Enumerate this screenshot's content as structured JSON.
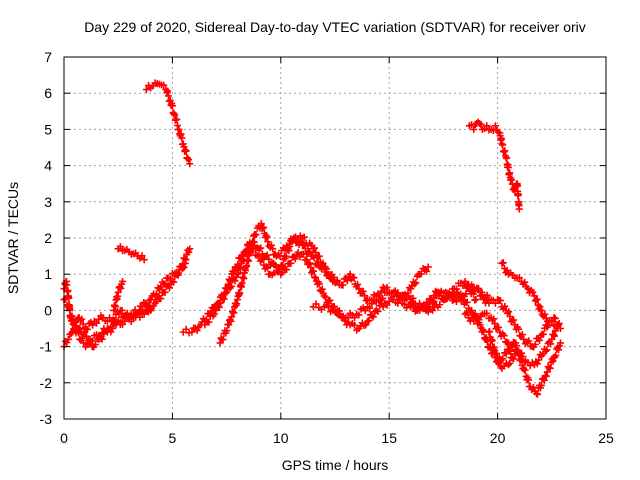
{
  "chart_data": {
    "type": "scatter",
    "title": "Day 229 of 2020, Sidereal Day-to-day VTEC variation (SDTVAR) for receiver oriv",
    "xlabel": "GPS time / hours",
    "ylabel": "SDTVAR / TECUs",
    "xlim": [
      0,
      25
    ],
    "ylim": [
      -3,
      7
    ],
    "xticks": [
      0,
      5,
      10,
      15,
      20,
      25
    ],
    "yticks": [
      -3,
      -2,
      -1,
      0,
      1,
      2,
      3,
      4,
      5,
      6,
      7
    ],
    "grid": true,
    "marker": "plus",
    "color": "#ff0000",
    "tracks": [
      {
        "name": "arc-high-1",
        "points": [
          [
            3.8,
            6.1
          ],
          [
            4.1,
            6.2
          ],
          [
            4.4,
            6.25
          ],
          [
            4.7,
            6.1
          ],
          [
            4.9,
            5.8
          ],
          [
            5.1,
            5.4
          ],
          [
            5.3,
            5.0
          ],
          [
            5.5,
            4.6
          ],
          [
            5.7,
            4.2
          ],
          [
            5.8,
            4.05
          ]
        ]
      },
      {
        "name": "arc-high-2",
        "points": [
          [
            18.7,
            5.1
          ],
          [
            18.9,
            5.0
          ],
          [
            19.1,
            5.2
          ],
          [
            19.3,
            5.0
          ],
          [
            19.5,
            5.1
          ],
          [
            19.7,
            5.0
          ],
          [
            19.9,
            5.1
          ],
          [
            20.1,
            4.9
          ],
          [
            20.2,
            4.6
          ],
          [
            20.4,
            4.2
          ],
          [
            20.6,
            3.6
          ],
          [
            20.8,
            3.3
          ],
          [
            20.9,
            3.5
          ],
          [
            21.0,
            2.8
          ]
        ]
      },
      {
        "name": "arc-low-a",
        "points": [
          [
            0.0,
            -1.0
          ],
          [
            0.2,
            -0.8
          ],
          [
            0.4,
            -0.6
          ],
          [
            0.7,
            -0.2
          ],
          [
            1.0,
            -0.5
          ],
          [
            1.4,
            -0.3
          ],
          [
            1.8,
            -0.2
          ],
          [
            2.2,
            -0.3
          ],
          [
            2.6,
            0.0
          ],
          [
            3.0,
            -0.2
          ],
          [
            3.4,
            -0.1
          ],
          [
            3.8,
            0.0
          ],
          [
            4.2,
            0.2
          ],
          [
            4.6,
            0.5
          ],
          [
            5.0,
            0.8
          ],
          [
            5.4,
            1.2
          ],
          [
            5.8,
            1.7
          ]
        ]
      },
      {
        "name": "arc-low-b",
        "points": [
          [
            0.0,
            0.3
          ],
          [
            0.2,
            0.1
          ],
          [
            0.4,
            -0.3
          ],
          [
            0.8,
            -0.6
          ],
          [
            1.2,
            -0.8
          ],
          [
            1.6,
            -0.7
          ],
          [
            2.0,
            -0.5
          ],
          [
            2.4,
            -0.3
          ],
          [
            2.8,
            -0.2
          ],
          [
            3.2,
            -0.1
          ],
          [
            3.6,
            0.1
          ],
          [
            4.0,
            0.3
          ],
          [
            4.4,
            0.6
          ],
          [
            4.8,
            0.9
          ],
          [
            5.2,
            1.0
          ],
          [
            5.6,
            1.3
          ]
        ]
      },
      {
        "name": "arc-low-c",
        "points": [
          [
            0.0,
            0.6
          ],
          [
            0.1,
            0.8
          ],
          [
            0.2,
            0.4
          ],
          [
            0.3,
            -0.2
          ],
          [
            0.5,
            -0.5
          ],
          [
            0.9,
            -0.9
          ],
          [
            1.3,
            -1.0
          ],
          [
            1.6,
            -0.8
          ],
          [
            2.0,
            -0.6
          ],
          [
            2.4,
            -0.4
          ],
          [
            2.8,
            -0.3
          ],
          [
            3.2,
            -0.2
          ],
          [
            3.6,
            -0.1
          ],
          [
            4.0,
            0.0
          ]
        ]
      },
      {
        "name": "arc-short",
        "points": [
          [
            2.5,
            1.7
          ],
          [
            2.8,
            1.65
          ],
          [
            3.1,
            1.55
          ],
          [
            3.4,
            1.5
          ],
          [
            3.7,
            1.4
          ]
        ]
      },
      {
        "name": "arc-mid-1",
        "points": [
          [
            2.3,
            0.0
          ],
          [
            2.5,
            0.5
          ],
          [
            2.7,
            0.8
          ]
        ]
      },
      {
        "name": "arc-mid-2",
        "points": [
          [
            5.5,
            -0.6
          ],
          [
            5.9,
            -0.6
          ],
          [
            6.3,
            -0.4
          ],
          [
            6.7,
            -0.1
          ],
          [
            7.1,
            0.2
          ],
          [
            7.5,
            0.6
          ],
          [
            7.9,
            1.2
          ],
          [
            8.3,
            1.6
          ],
          [
            8.7,
            1.9
          ],
          [
            9.0,
            1.7
          ],
          [
            9.3,
            1.5
          ],
          [
            9.6,
            1.3
          ],
          [
            10.0,
            1.0
          ],
          [
            10.4,
            1.3
          ],
          [
            10.8,
            1.6
          ],
          [
            11.2,
            1.4
          ],
          [
            11.6,
            0.9
          ],
          [
            12.0,
            0.4
          ],
          [
            12.4,
            0.1
          ],
          [
            12.8,
            -0.2
          ],
          [
            13.2,
            -0.4
          ],
          [
            13.6,
            -0.5
          ],
          [
            14.0,
            -0.3
          ],
          [
            14.4,
            0.0
          ],
          [
            14.8,
            0.2
          ],
          [
            15.2,
            0.3
          ],
          [
            15.6,
            0.2
          ],
          [
            16.0,
            0.1
          ],
          [
            16.4,
            0.0
          ],
          [
            16.8,
            0.2
          ],
          [
            17.2,
            0.5
          ],
          [
            17.6,
            0.3
          ],
          [
            18.0,
            0.5
          ],
          [
            18.4,
            0.3
          ],
          [
            18.8,
            0.0
          ],
          [
            19.2,
            -0.4
          ],
          [
            19.6,
            -1.0
          ],
          [
            20.0,
            -1.4
          ],
          [
            20.4,
            -1.2
          ],
          [
            20.8,
            -0.9
          ],
          [
            21.2,
            -1.6
          ],
          [
            21.5,
            -2.1
          ],
          [
            21.8,
            -2.3
          ],
          [
            22.2,
            -1.8
          ],
          [
            22.6,
            -1.3
          ],
          [
            22.9,
            -0.9
          ]
        ]
      },
      {
        "name": "arc-mid-3",
        "points": [
          [
            6.5,
            -0.4
          ],
          [
            7.0,
            0.0
          ],
          [
            7.5,
            0.5
          ],
          [
            8.0,
            1.0
          ],
          [
            8.5,
            1.8
          ],
          [
            9.0,
            1.5
          ],
          [
            9.5,
            1.0
          ],
          [
            10.0,
            1.2
          ],
          [
            10.5,
            1.9
          ],
          [
            11.0,
            2.0
          ],
          [
            11.5,
            1.7
          ],
          [
            12.0,
            1.2
          ],
          [
            12.4,
            0.8
          ],
          [
            12.8,
            0.7
          ],
          [
            13.2,
            1.0
          ],
          [
            13.6,
            0.6
          ],
          [
            14.0,
            0.3
          ],
          [
            14.4,
            0.4
          ],
          [
            14.8,
            0.6
          ],
          [
            15.2,
            0.5
          ],
          [
            15.6,
            0.3
          ],
          [
            16.0,
            0.6
          ],
          [
            16.4,
            1.0
          ],
          [
            16.8,
            1.2
          ]
        ]
      },
      {
        "name": "arc-mid-4",
        "points": [
          [
            7.2,
            -0.9
          ],
          [
            7.6,
            -0.4
          ],
          [
            8.0,
            0.3
          ],
          [
            8.4,
            1.2
          ],
          [
            8.8,
            2.1
          ],
          [
            9.1,
            2.4
          ],
          [
            9.4,
            1.9
          ],
          [
            9.8,
            1.5
          ],
          [
            10.2,
            1.7
          ],
          [
            10.6,
            2.0
          ],
          [
            11.0,
            1.8
          ],
          [
            11.4,
            1.5
          ],
          [
            11.8,
            1.2
          ],
          [
            12.2,
            1.0
          ],
          [
            12.6,
            0.8
          ]
        ]
      },
      {
        "name": "arc-mid-5",
        "points": [
          [
            11.5,
            0.1
          ],
          [
            12.0,
            0.1
          ],
          [
            12.5,
            0.0
          ],
          [
            13.0,
            -0.2
          ],
          [
            13.5,
            -0.1
          ],
          [
            14.0,
            0.1
          ],
          [
            14.5,
            0.3
          ],
          [
            15.0,
            0.5
          ],
          [
            15.5,
            0.4
          ],
          [
            16.0,
            0.3
          ],
          [
            16.5,
            0.1
          ],
          [
            17.0,
            0.0
          ],
          [
            17.5,
            0.3
          ],
          [
            18.0,
            0.6
          ],
          [
            18.5,
            0.8
          ],
          [
            19.0,
            0.3
          ]
        ]
      },
      {
        "name": "arc-late-1",
        "points": [
          [
            18.5,
            -0.1
          ],
          [
            18.9,
            -0.3
          ],
          [
            19.3,
            -0.1
          ],
          [
            19.7,
            -0.2
          ],
          [
            20.1,
            -0.6
          ],
          [
            20.5,
            -0.9
          ],
          [
            20.9,
            -1.1
          ],
          [
            21.3,
            -1.4
          ],
          [
            21.7,
            -1.5
          ],
          [
            22.1,
            -1.2
          ],
          [
            22.5,
            -0.8
          ],
          [
            22.8,
            -0.4
          ]
        ]
      },
      {
        "name": "arc-late-2",
        "points": [
          [
            19.2,
            0.4
          ],
          [
            19.6,
            0.2
          ],
          [
            20.0,
            0.3
          ],
          [
            20.4,
            0.0
          ],
          [
            20.8,
            -0.4
          ],
          [
            21.2,
            -0.8
          ],
          [
            21.6,
            -1.0
          ],
          [
            22.0,
            -0.7
          ],
          [
            22.4,
            -0.3
          ],
          [
            22.8,
            -0.4
          ]
        ]
      },
      {
        "name": "arc-late-3",
        "points": [
          [
            20.2,
            1.3
          ],
          [
            20.5,
            1.0
          ],
          [
            20.8,
            0.9
          ],
          [
            21.1,
            0.8
          ],
          [
            21.4,
            0.6
          ],
          [
            21.7,
            0.4
          ],
          [
            22.0,
            0.0
          ],
          [
            22.3,
            -0.3
          ],
          [
            22.6,
            -0.2
          ],
          [
            22.9,
            -0.5
          ]
        ]
      },
      {
        "name": "arc-late-4",
        "points": [
          [
            19.6,
            -0.6
          ],
          [
            19.9,
            -1.2
          ],
          [
            20.2,
            -1.6
          ],
          [
            20.5,
            -1.5
          ],
          [
            20.8,
            -1.2
          ]
        ]
      },
      {
        "name": "arc-late-5",
        "points": [
          [
            16.0,
            0.2
          ],
          [
            16.4,
            0.0
          ],
          [
            16.8,
            0.1
          ],
          [
            17.2,
            0.4
          ],
          [
            17.6,
            0.5
          ],
          [
            18.0,
            0.3
          ],
          [
            18.4,
            0.4
          ],
          [
            18.8,
            0.7
          ],
          [
            19.2,
            0.5
          ],
          [
            19.6,
            0.3
          ]
        ]
      }
    ]
  }
}
